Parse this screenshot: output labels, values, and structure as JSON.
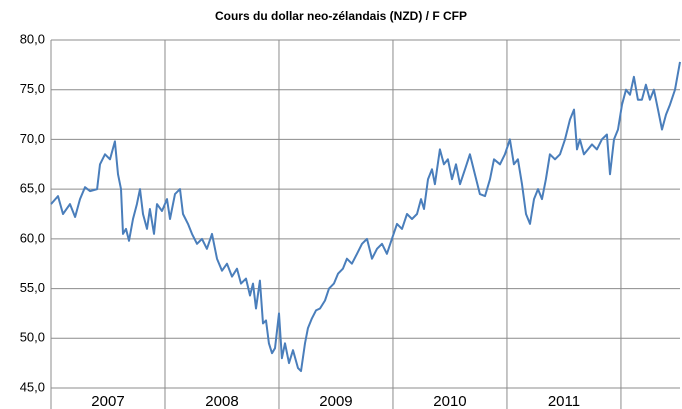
{
  "chart_data": {
    "type": "line",
    "title": "Cours du dollar neo-zélandais (NZD) / F CFP",
    "x": [
      2007,
      2007.061,
      2007.105,
      2007.167,
      2007.211,
      2007.254,
      2007.298,
      2007.342,
      2007.404,
      2007.43,
      2007.474,
      2007.518,
      2007.561,
      2007.588,
      2007.614,
      2007.632,
      2007.658,
      2007.684,
      2007.719,
      2007.754,
      2007.781,
      2007.807,
      2007.842,
      2007.868,
      2007.904,
      2007.93,
      2007.974,
      2008.018,
      2008.044,
      2008.088,
      2008.132,
      2008.158,
      2008.202,
      2008.237,
      2008.281,
      2008.325,
      2008.368,
      2008.412,
      2008.456,
      2008.5,
      2008.544,
      2008.588,
      2008.632,
      2008.667,
      2008.711,
      2008.746,
      2008.772,
      2008.798,
      2008.833,
      2008.86,
      2008.886,
      2008.912,
      2008.939,
      2008.965,
      2009.0,
      2009.026,
      2009.053,
      2009.088,
      2009.123,
      2009.167,
      2009.193,
      2009.228,
      2009.254,
      2009.289,
      2009.325,
      2009.36,
      2009.404,
      2009.439,
      2009.482,
      2009.518,
      2009.561,
      2009.596,
      2009.64,
      2009.684,
      2009.728,
      2009.772,
      2009.816,
      2009.86,
      2009.904,
      2009.947,
      2009.991,
      2010.035,
      2010.079,
      2010.123,
      2010.167,
      2010.211,
      2010.246,
      2010.272,
      2010.307,
      2010.342,
      2010.368,
      2010.412,
      2010.447,
      2010.482,
      2010.518,
      2010.553,
      2010.588,
      2010.632,
      2010.675,
      2010.719,
      2010.763,
      2010.807,
      2010.851,
      2010.886,
      2010.939,
      2010.982,
      2011.026,
      2011.061,
      2011.096,
      2011.132,
      2011.167,
      2011.202,
      2011.237,
      2011.272,
      2011.307,
      2011.342,
      2011.377,
      2011.421,
      2011.465,
      2011.509,
      2011.553,
      2011.588,
      2011.614,
      2011.64,
      2011.675,
      2011.711,
      2011.746,
      2011.789,
      2011.833,
      2011.877,
      2011.904,
      2011.939,
      2011.974,
      2012.009,
      2012.044,
      2012.079,
      2012.114,
      2012.149,
      2012.184,
      2012.219,
      2012.254,
      2012.289,
      2012.325,
      2012.36,
      2012.395,
      2012.43,
      2012.474,
      2012.518
    ],
    "series": [
      {
        "color": "#4a7ebb",
        "values": [
          63.5,
          64.3,
          62.5,
          63.5,
          62.2,
          64.0,
          65.2,
          64.8,
          65.0,
          67.5,
          68.5,
          68.0,
          69.8,
          66.5,
          65.0,
          60.5,
          61.0,
          59.8,
          62.0,
          63.5,
          65.0,
          62.5,
          61.0,
          63.0,
          60.5,
          63.5,
          62.8,
          64.0,
          62.0,
          64.5,
          65.0,
          62.5,
          61.5,
          60.5,
          59.5,
          60.0,
          59.0,
          60.5,
          58.0,
          56.8,
          57.5,
          56.2,
          57.0,
          55.5,
          56.0,
          54.3,
          55.5,
          53.0,
          55.8,
          51.5,
          51.8,
          49.5,
          48.5,
          49.0,
          52.5,
          48.0,
          49.5,
          47.5,
          48.8,
          47.0,
          46.7,
          49.5,
          51.0,
          52.0,
          52.8,
          53.0,
          53.8,
          55.0,
          55.5,
          56.5,
          57.0,
          58.0,
          57.5,
          58.5,
          59.5,
          60.0,
          58.0,
          59.0,
          59.5,
          58.5,
          60.0,
          61.5,
          61.0,
          62.5,
          62.0,
          62.5,
          64.0,
          63.0,
          66.0,
          67.0,
          65.5,
          69.0,
          67.5,
          68.0,
          66.0,
          67.5,
          65.5,
          67.0,
          68.5,
          66.5,
          64.5,
          64.3,
          66.0,
          68.0,
          67.5,
          68.5,
          70.0,
          67.5,
          68.0,
          65.5,
          62.5,
          61.5,
          64.0,
          65.0,
          64.0,
          66.0,
          68.5,
          68.0,
          68.5,
          70.0,
          72.0,
          73.0,
          69.0,
          70.0,
          68.5,
          69.0,
          69.5,
          69.0,
          70.0,
          70.5,
          66.5,
          70.0,
          71.0,
          73.5,
          75.0,
          74.5,
          76.3,
          74.0,
          74.0,
          75.5,
          74.0,
          75.0,
          73.0,
          71.0,
          72.5,
          73.5,
          75.0,
          77.8
        ]
      }
    ],
    "xlim": [
      2007,
      2012.518
    ],
    "xticks": [
      2007,
      2008,
      2009,
      2010,
      2011,
      2012
    ],
    "year_labels": [
      "2007",
      "2008",
      "2009",
      "2010",
      "2011"
    ],
    "ylim": [
      45,
      80
    ],
    "yticks": [
      {
        "value": 45,
        "label": "45,0"
      },
      {
        "value": 50,
        "label": "50,0"
      },
      {
        "value": 55,
        "label": "55,0"
      },
      {
        "value": 60,
        "label": "60,0"
      },
      {
        "value": 65,
        "label": "65,0"
      },
      {
        "value": 70,
        "label": "70,0"
      },
      {
        "value": 75,
        "label": "75,0"
      },
      {
        "value": 80,
        "label": "80,0"
      }
    ],
    "grid": true
  }
}
